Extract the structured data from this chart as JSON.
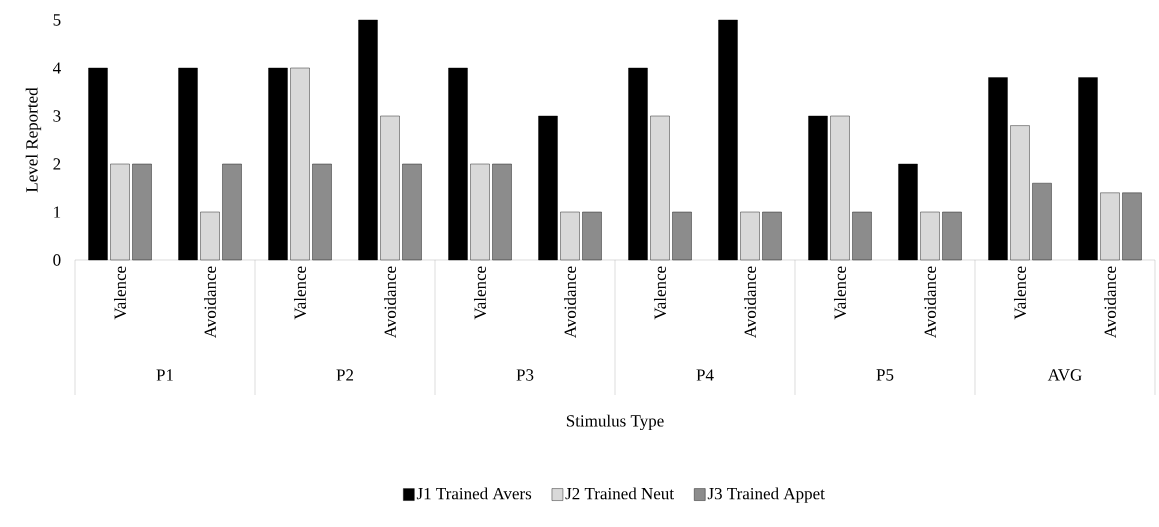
{
  "chart_data": {
    "type": "bar",
    "xlabel": "Stimulus Type",
    "ylabel": "Level Reported",
    "categories": [
      "Valence",
      "Avoidance",
      "Valence",
      "Avoidance",
      "Valence",
      "Avoidance",
      "Valence",
      "Avoidance",
      "Valence",
      "Avoidance",
      "Valence",
      "Avoidance"
    ],
    "annotations": [
      "P1",
      "P2",
      "P3",
      "P4",
      "P5",
      "AVG"
    ],
    "series": [
      {
        "name": "J1 Trained Avers",
        "color": "#000000",
        "values": [
          4,
          4,
          4,
          5,
          4,
          3,
          4,
          5,
          3,
          2,
          3.8,
          3.8
        ]
      },
      {
        "name": "J2 Trained Neut",
        "color": "#d9d9d9",
        "values": [
          2,
          1,
          4,
          3,
          2,
          1,
          3,
          1,
          3,
          1,
          2.8,
          1.4
        ]
      },
      {
        "name": "J3 Trained Appet",
        "color": "#8c8c8c",
        "values": [
          2,
          2,
          2,
          2,
          2,
          1,
          1,
          1,
          1,
          1,
          1.6,
          1.4
        ]
      }
    ],
    "ylim": [
      0,
      5
    ],
    "yticks": [
      0,
      1,
      2,
      3,
      4,
      5
    ],
    "grid": false,
    "legend": "bottom"
  }
}
